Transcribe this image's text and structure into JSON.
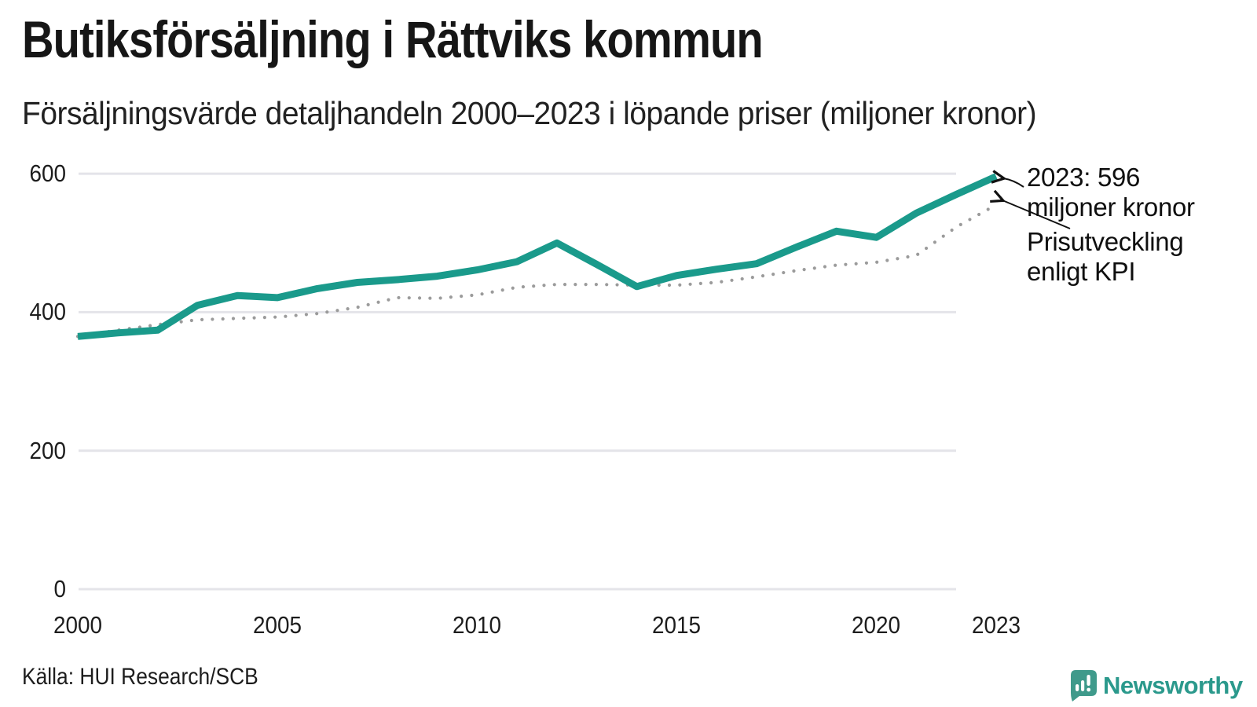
{
  "header": {
    "title": "Butiksförsäljning i Rättviks kommun",
    "subtitle": "Försäljningsvärde detaljhandeln 2000–2023 i löpande priser (miljoner kronor)"
  },
  "chart_data": {
    "type": "line",
    "title": "Butiksförsäljning i Rättviks kommun",
    "subtitle": "Försäljningsvärde detaljhandeln 2000–2023 i löpande priser (miljoner kronor)",
    "x": [
      2000,
      2001,
      2002,
      2003,
      2004,
      2005,
      2006,
      2007,
      2008,
      2009,
      2010,
      2011,
      2012,
      2013,
      2014,
      2015,
      2016,
      2017,
      2018,
      2019,
      2020,
      2021,
      2022,
      2023
    ],
    "series": [
      {
        "name": "Försäljningsvärde i löpande priser",
        "style": "solid",
        "color": "#1a9a8b",
        "values": [
          365,
          370,
          374,
          410,
          424,
          421,
          434,
          443,
          447,
          452,
          461,
          473,
          500,
          469,
          437,
          453,
          462,
          470,
          494,
          517,
          508,
          543,
          570,
          596
        ]
      },
      {
        "name": "Prisutveckling enligt KPI",
        "style": "dotted",
        "color": "#9b9b9b",
        "values": [
          365,
          374,
          382,
          389,
          391,
          393,
          398,
          407,
          421,
          420,
          425,
          436,
          440,
          440,
          439,
          439,
          443,
          451,
          460,
          468,
          472,
          482,
          523,
          555
        ]
      }
    ],
    "ylim": [
      0,
      620
    ],
    "xlabel": "",
    "ylabel": "",
    "grid": "horizontal",
    "legend_position": "none",
    "y_ticks": [
      "600",
      "400",
      "200",
      "0"
    ],
    "y_tick_values": [
      600,
      400,
      200,
      0
    ],
    "x_ticks": [
      "2000",
      "2005",
      "2010",
      "2015",
      "2020",
      "2023"
    ],
    "x_tick_values": [
      2000,
      2005,
      2010,
      2015,
      2020,
      2023
    ],
    "annotations": [
      {
        "line1": "2023: 596",
        "line2": "miljoner kronor",
        "target": "sales-line-end"
      },
      {
        "line1": "Prisutveckling",
        "line2": "enligt KPI",
        "target": "kpi-line-end"
      }
    ]
  },
  "footer": {
    "source": "Källa: HUI Research/SCB",
    "brand": "Newsworthy"
  },
  "colors": {
    "accent": "#1a9a8b",
    "kpi_dotted": "#9b9b9b",
    "gridline": "#e4e4e9",
    "brand_teal": "#2b998c",
    "brand_badge": "#3f9a8b"
  }
}
